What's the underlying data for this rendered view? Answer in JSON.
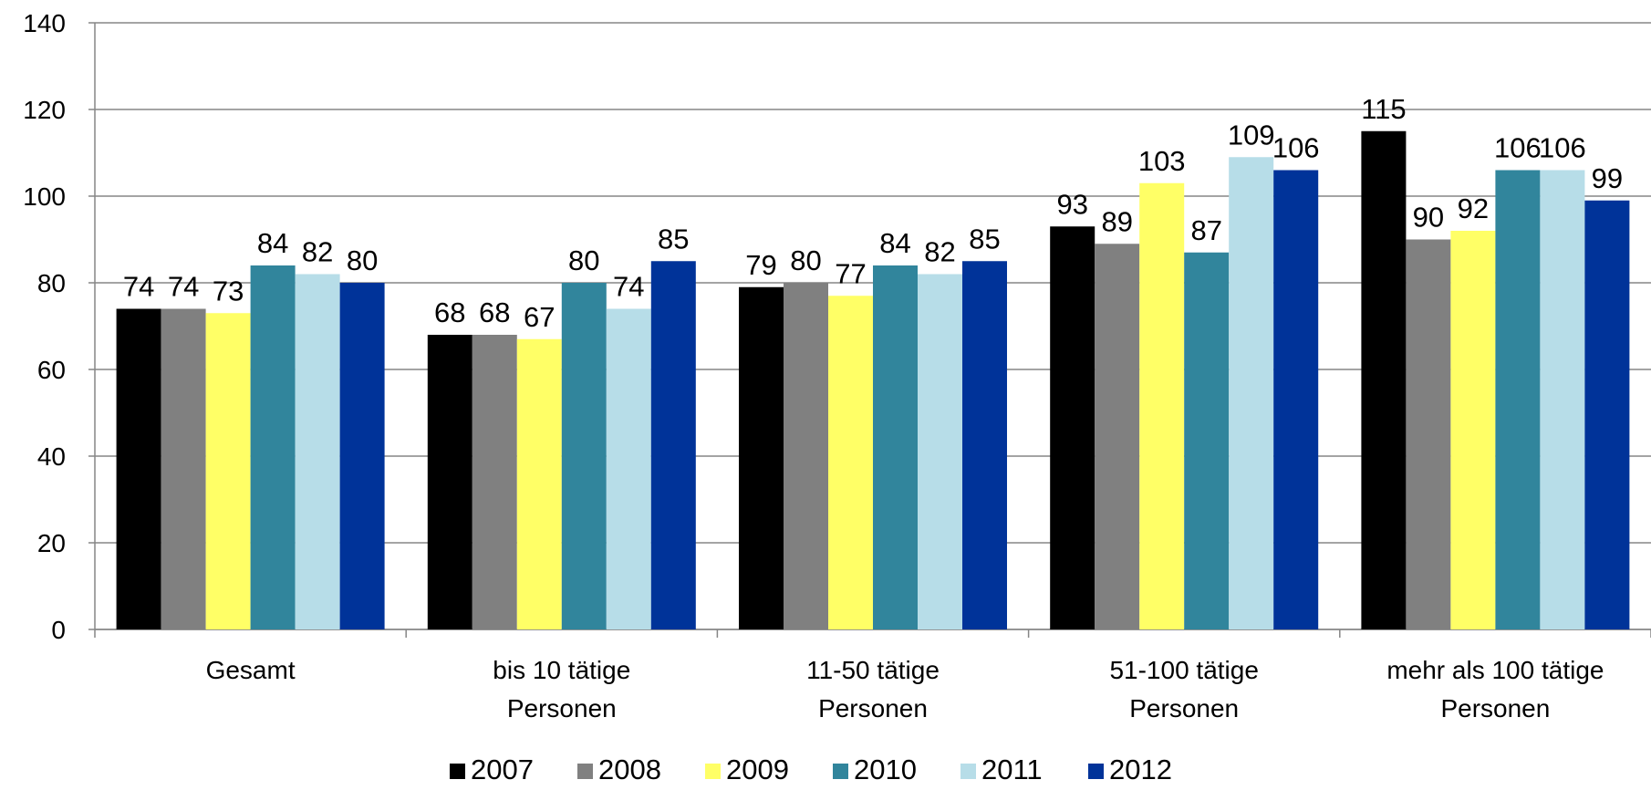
{
  "chart_data": {
    "type": "bar",
    "categories": [
      "Gesamt",
      "bis 10 tätige\nPersonen",
      "11-50 tätige\nPersonen",
      "51-100 tätige\nPersonen",
      "mehr als 100 tätige\nPersonen"
    ],
    "series": [
      {
        "name": "2007",
        "color": "#000000",
        "values": [
          74,
          68,
          79,
          93,
          115
        ]
      },
      {
        "name": "2008",
        "color": "#808080",
        "values": [
          74,
          68,
          80,
          89,
          90
        ]
      },
      {
        "name": "2009",
        "color": "#ffff66",
        "values": [
          73,
          67,
          77,
          103,
          92
        ]
      },
      {
        "name": "2010",
        "color": "#31859c",
        "values": [
          84,
          80,
          84,
          87,
          106
        ]
      },
      {
        "name": "2011",
        "color": "#b7dde8",
        "values": [
          82,
          74,
          82,
          109,
          106
        ]
      },
      {
        "name": "2012",
        "color": "#003399",
        "values": [
          80,
          85,
          85,
          106,
          99
        ]
      }
    ],
    "ylim": [
      0,
      140
    ],
    "yticks": [
      0,
      20,
      40,
      60,
      80,
      100,
      120,
      140
    ],
    "grid": true,
    "legend": "bottom"
  }
}
